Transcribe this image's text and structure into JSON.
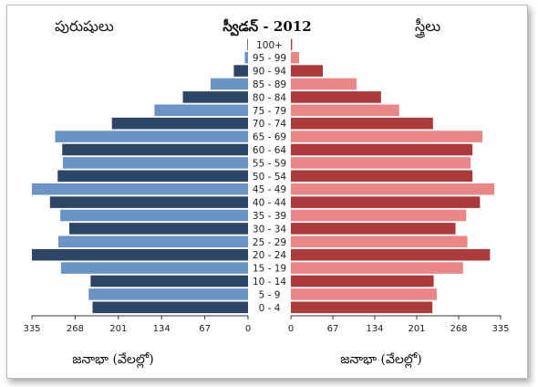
{
  "chart_data": {
    "type": "bar",
    "title": "స్వీడన్ - 2012",
    "left_header": "పురుషులు",
    "right_header": "స్త్రీలు",
    "xlabel_left": "జనాభా (వేలల్లో)",
    "xlabel_right": "జనాభా (వేలల్లో)",
    "categories": [
      "0 - 4",
      "5 - 9",
      "10 - 14",
      "15 - 19",
      "20 - 24",
      "25 - 29",
      "30 - 34",
      "35 - 39",
      "40 - 44",
      "45 - 49",
      "50 - 54",
      "55 - 59",
      "60 - 64",
      "65 - 69",
      "70 - 74",
      "75 - 79",
      "80 - 84",
      "85 - 89",
      "90 - 94",
      "95 - 99",
      "100+"
    ],
    "series": [
      {
        "name": "పురుషులు",
        "values": [
          241,
          247,
          244,
          290,
          335,
          294,
          277,
          291,
          307,
          335,
          295,
          287,
          288,
          299,
          211,
          145,
          101,
          58,
          22,
          5,
          1
        ],
        "color": "#2d4566"
      },
      {
        "name": "స్త్రీలు",
        "values": [
          226,
          233,
          228,
          275,
          318,
          282,
          263,
          280,
          302,
          325,
          290,
          287,
          290,
          306,
          227,
          173,
          144,
          105,
          51,
          13,
          2
        ],
        "color": "#ad3a3a"
      }
    ],
    "stripe_colors": {
      "left": [
        "#2d4566",
        "#6a94c6"
      ],
      "right": [
        "#ad3a3a",
        "#ec8686"
      ]
    },
    "x_ticks": [
      335,
      268,
      201,
      134,
      67,
      0
    ],
    "xlim": [
      0,
      335
    ]
  }
}
